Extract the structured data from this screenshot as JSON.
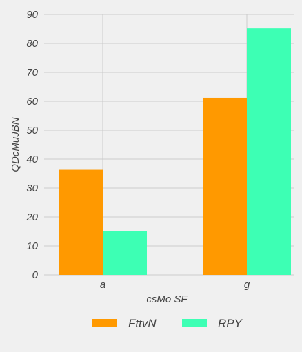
{
  "chart_data": {
    "type": "bar",
    "categories": [
      "a",
      "g"
    ],
    "series": [
      {
        "name": "FttvN",
        "values": [
          36.3,
          61.2
        ],
        "color": "#ff9900"
      },
      {
        "name": "RPY",
        "values": [
          15.0,
          85.2
        ],
        "color": "#3dffb4"
      }
    ],
    "xlabel": "csMo SF",
    "ylabel": "QDcMuJBN",
    "ylim": [
      0,
      90
    ],
    "yticks": [
      0,
      10,
      20,
      30,
      40,
      50,
      60,
      70,
      80,
      90
    ],
    "grid": true,
    "legend_position": "bottom"
  }
}
